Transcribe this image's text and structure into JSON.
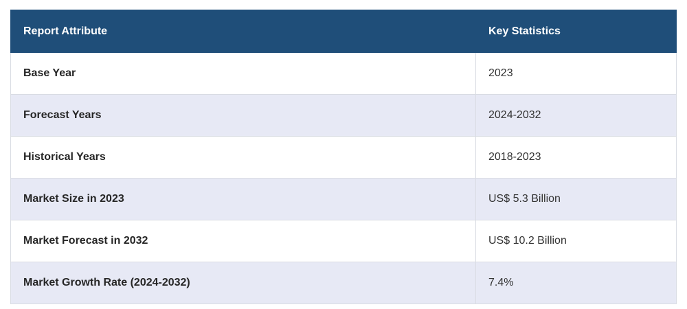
{
  "table": {
    "headers": [
      "Report Attribute",
      "Key Statistics"
    ],
    "rows": [
      {
        "attribute": "Base Year",
        "value": "2023"
      },
      {
        "attribute": "Forecast Years",
        "value": "2024-2032"
      },
      {
        "attribute": "Historical Years",
        "value": "2018-2023"
      },
      {
        "attribute": "Market Size in 2023",
        "value": "US$ 5.3 Billion"
      },
      {
        "attribute": "Market Forecast in 2032",
        "value": "US$ 10.2 Billion"
      },
      {
        "attribute": "Market Growth Rate (2024-2032)",
        "value": "7.4%"
      }
    ]
  },
  "colors": {
    "header_bg": "#1f4e79",
    "header_text": "#ffffff",
    "row_alt_bg": "#e7e9f5",
    "row_bg": "#ffffff",
    "border": "#d9dce3"
  }
}
